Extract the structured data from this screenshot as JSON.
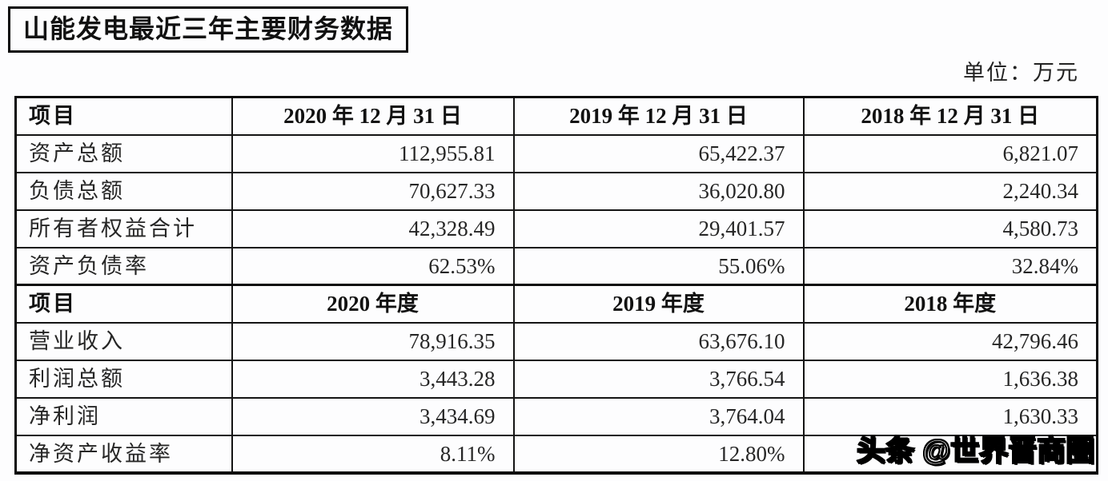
{
  "page": {
    "title": "山能发电最近三年主要财务数据",
    "unit_label": "单位：万元",
    "watermark": "头条 @世界晋商圈"
  },
  "table": {
    "sections": [
      {
        "header": [
          "项目",
          "2020 年 12 月 31 日",
          "2019 年 12 月 31 日",
          "2018 年 12 月 31 日"
        ],
        "rows": [
          {
            "label": "资产总额",
            "values": [
              "112,955.81",
              "65,422.37",
              "6,821.07"
            ]
          },
          {
            "label": "负债总额",
            "values": [
              "70,627.33",
              "36,020.80",
              "2,240.34"
            ]
          },
          {
            "label": "所有者权益合计",
            "values": [
              "42,328.49",
              "29,401.57",
              "4,580.73"
            ]
          },
          {
            "label": "资产负债率",
            "values": [
              "62.53%",
              "55.06%",
              "32.84%"
            ]
          }
        ]
      },
      {
        "header": [
          "项目",
          "2020 年度",
          "2019 年度",
          "2018 年度"
        ],
        "rows": [
          {
            "label": "营业收入",
            "values": [
              "78,916.35",
              "63,676.10",
              "42,796.46"
            ]
          },
          {
            "label": "利润总额",
            "values": [
              "3,443.28",
              "3,766.54",
              "1,636.38"
            ]
          },
          {
            "label": "净利润",
            "values": [
              "3,434.69",
              "3,764.04",
              "1,630.33"
            ]
          },
          {
            "label": "净资产收益率",
            "values": [
              "8.11%",
              "12.80%",
              ""
            ]
          }
        ]
      }
    ]
  }
}
